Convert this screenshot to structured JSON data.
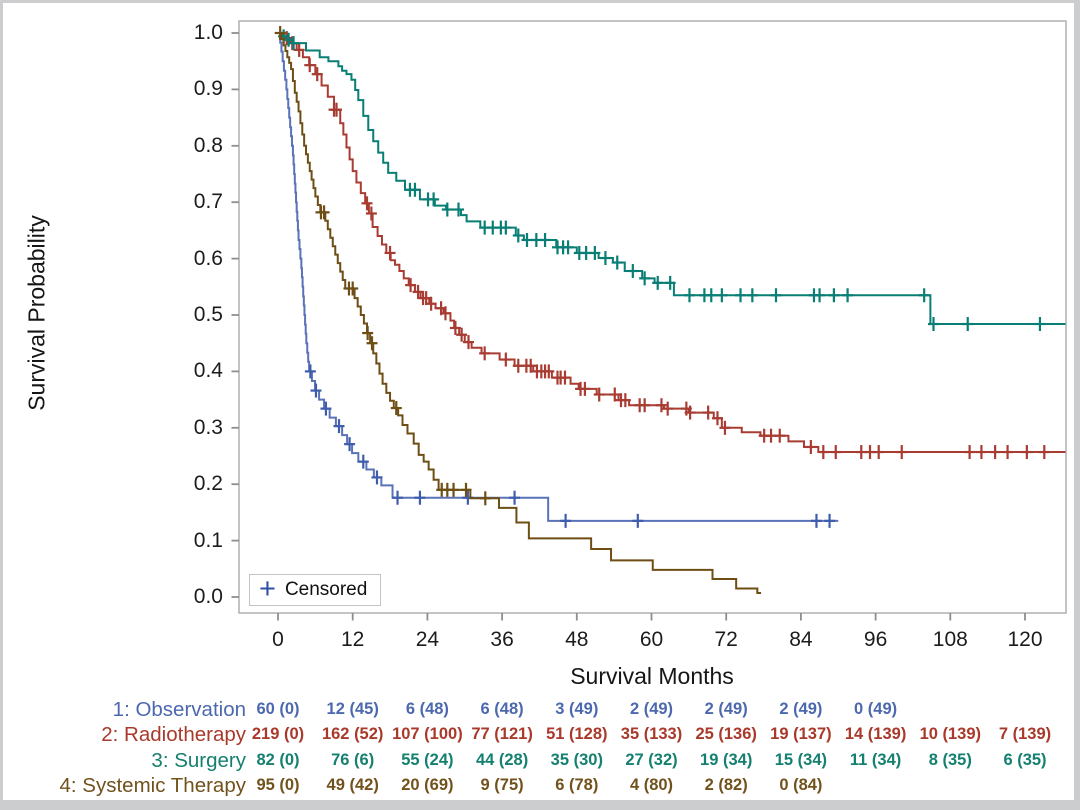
{
  "legend": {
    "marker": "+",
    "label": "Censored",
    "marker_color": "#2b50a4"
  },
  "palette": {
    "observation": "#5a73b8",
    "radiotherapy": "#a93c32",
    "surgery": "#087e74",
    "systemic": "#6e4e14",
    "axis_text": "#1c1c1c",
    "plot_border": "#a8aaac",
    "tick_mark": "#8c8e90"
  },
  "chart_data": {
    "type": "line",
    "subtype": "kaplan-meier-step",
    "title": "",
    "xlabel": "Survival Months",
    "ylabel": "Survival Probability",
    "xlim": [
      -6.3,
      126.6
    ],
    "ylim": [
      0.0,
      1.0
    ],
    "grid": false,
    "legend_position": "inside-bottom-left",
    "x_ticks": [
      0,
      12,
      24,
      36,
      48,
      60,
      72,
      84,
      96,
      108,
      120
    ],
    "y_ticks": [
      "1.0",
      "0.9",
      "0.8",
      "0.7",
      "0.6",
      "0.5",
      "0.4",
      "0.3",
      "0.2",
      "0.1",
      "0.0"
    ],
    "series": [
      {
        "name": "1: Observation",
        "color": "#5a73b8",
        "censor_color": "#3f5dad",
        "end_month": 90,
        "points": [
          [
            0,
            1
          ],
          [
            0.35,
            0.983
          ],
          [
            0.55,
            0.967
          ],
          [
            0.75,
            0.95
          ],
          [
            0.95,
            0.933
          ],
          [
            1.15,
            0.917
          ],
          [
            1.35,
            0.9
          ],
          [
            1.5,
            0.883
          ],
          [
            1.65,
            0.867
          ],
          [
            1.8,
            0.85
          ],
          [
            1.95,
            0.833
          ],
          [
            2.1,
            0.817
          ],
          [
            2.25,
            0.8
          ],
          [
            2.4,
            0.783
          ],
          [
            2.5,
            0.767
          ],
          [
            2.6,
            0.75
          ],
          [
            2.7,
            0.733
          ],
          [
            2.8,
            0.717
          ],
          [
            2.9,
            0.7
          ],
          [
            3,
            0.683
          ],
          [
            3.1,
            0.667
          ],
          [
            3.2,
            0.65
          ],
          [
            3.3,
            0.633
          ],
          [
            3.45,
            0.617
          ],
          [
            3.6,
            0.6
          ],
          [
            3.75,
            0.583
          ],
          [
            3.85,
            0.567
          ],
          [
            3.95,
            0.55
          ],
          [
            4.05,
            0.533
          ],
          [
            4.15,
            0.517
          ],
          [
            4.25,
            0.5
          ],
          [
            4.35,
            0.483
          ],
          [
            4.45,
            0.467
          ],
          [
            4.55,
            0.45
          ],
          [
            4.7,
            0.433
          ],
          [
            4.85,
            0.417
          ],
          [
            5,
            0.4
          ],
          [
            5.45,
            0.383
          ],
          [
            5.95,
            0.366
          ],
          [
            6.6,
            0.35
          ],
          [
            7.4,
            0.334
          ],
          [
            8.3,
            0.318
          ],
          [
            9.3,
            0.303
          ],
          [
            10.3,
            0.287
          ],
          [
            11.1,
            0.271
          ],
          [
            11.9,
            0.255
          ],
          [
            12.9,
            0.24
          ],
          [
            14.2,
            0.226
          ],
          [
            15.4,
            0.212
          ],
          [
            16.6,
            0.198
          ],
          [
            18.4,
            0.176
          ],
          [
            43.4,
            0.135
          ]
        ],
        "censor_months": [
          5.2,
          6.1,
          7.7,
          9.8,
          11.5,
          13.7,
          15.9,
          19.2,
          22.8,
          30.5,
          38,
          46.2,
          57.8,
          86.5,
          88.6
        ]
      },
      {
        "name": "2: Radiotherapy",
        "color": "#a93c32",
        "censor_color": "#a93c32",
        "end_month": 126.5,
        "points": [
          [
            0,
            1
          ],
          [
            1,
            0.991
          ],
          [
            2,
            0.982
          ],
          [
            3,
            0.97
          ],
          [
            4,
            0.957
          ],
          [
            5,
            0.943
          ],
          [
            6,
            0.927
          ],
          [
            7,
            0.907
          ],
          [
            8,
            0.887
          ],
          [
            9,
            0.864
          ],
          [
            10,
            0.84
          ],
          [
            10.5,
            0.82
          ],
          [
            11,
            0.797
          ],
          [
            11.5,
            0.776
          ],
          [
            12,
            0.755
          ],
          [
            12.6,
            0.735
          ],
          [
            13.3,
            0.716
          ],
          [
            14,
            0.698
          ],
          [
            14.6,
            0.68
          ],
          [
            15.2,
            0.656
          ],
          [
            16,
            0.64
          ],
          [
            16.7,
            0.625
          ],
          [
            17.4,
            0.61
          ],
          [
            18.1,
            0.597
          ],
          [
            18.8,
            0.589
          ],
          [
            19.5,
            0.578
          ],
          [
            20.2,
            0.565
          ],
          [
            21,
            0.553
          ],
          [
            22,
            0.541
          ],
          [
            22.9,
            0.53
          ],
          [
            24.3,
            0.52
          ],
          [
            25.3,
            0.512
          ],
          [
            26.6,
            0.503
          ],
          [
            27.7,
            0.49
          ],
          [
            28.3,
            0.477
          ],
          [
            29.1,
            0.465
          ],
          [
            30,
            0.452
          ],
          [
            31.1,
            0.442
          ],
          [
            32.7,
            0.432
          ],
          [
            35.6,
            0.421
          ],
          [
            38,
            0.41
          ],
          [
            41,
            0.4
          ],
          [
            44,
            0.389
          ],
          [
            47,
            0.378
          ],
          [
            48.3,
            0.369
          ],
          [
            51.2,
            0.359
          ],
          [
            54.7,
            0.349
          ],
          [
            56.4,
            0.34
          ],
          [
            62,
            0.334
          ],
          [
            66,
            0.327
          ],
          [
            70,
            0.317
          ],
          [
            71.3,
            0.3
          ],
          [
            74.5,
            0.292
          ],
          [
            77.5,
            0.286
          ],
          [
            82,
            0.276
          ],
          [
            84.5,
            0.266
          ],
          [
            86.8,
            0.257
          ]
        ],
        "censor_months": [
          1.4,
          2.3,
          3.4,
          5.1,
          6.3,
          9,
          9.4,
          14.3,
          15,
          18,
          21.3,
          22.5,
          23.3,
          23.8,
          24.6,
          26.2,
          26.9,
          28.5,
          29.5,
          30.6,
          33.2,
          36.6,
          38.6,
          39.9,
          40.6,
          41.6,
          42.3,
          42.9,
          43.5,
          44.9,
          45.4,
          46.1,
          48.6,
          49.3,
          51.6,
          54.1,
          55.1,
          55.8,
          58.1,
          58.9,
          61.6,
          62.6,
          65.6,
          66.2,
          69.1,
          70.6,
          71.8,
          78.1,
          79.2,
          80.6,
          85.6,
          87.6,
          89.6,
          93.7,
          95.1,
          96.5,
          100.2,
          111.1,
          113,
          115.2,
          117.2,
          120.3,
          123.1
        ]
      },
      {
        "name": "3: Surgery",
        "color": "#087e74",
        "censor_color": "#087e74",
        "end_month": 126.5,
        "points": [
          [
            0,
            1
          ],
          [
            0.8,
            0.994
          ],
          [
            1.6,
            0.988
          ],
          [
            2.4,
            0.982
          ],
          [
            4.5,
            0.969
          ],
          [
            6.7,
            0.957
          ],
          [
            8.1,
            0.95
          ],
          [
            9.7,
            0.941
          ],
          [
            10.3,
            0.933
          ],
          [
            11,
            0.927
          ],
          [
            11.8,
            0.917
          ],
          [
            12.4,
            0.899
          ],
          [
            12.9,
            0.881
          ],
          [
            13.7,
            0.853
          ],
          [
            14.5,
            0.828
          ],
          [
            15.3,
            0.808
          ],
          [
            16.1,
            0.788
          ],
          [
            16.9,
            0.77
          ],
          [
            17.7,
            0.752
          ],
          [
            19,
            0.738
          ],
          [
            20.4,
            0.722
          ],
          [
            22.8,
            0.705
          ],
          [
            25.2,
            0.694
          ],
          [
            27,
            0.687
          ],
          [
            29.4,
            0.677
          ],
          [
            30.3,
            0.666
          ],
          [
            32.5,
            0.655
          ],
          [
            38.2,
            0.641
          ],
          [
            39.5,
            0.633
          ],
          [
            44.7,
            0.62
          ],
          [
            48,
            0.61
          ],
          [
            51.5,
            0.601
          ],
          [
            53.8,
            0.593
          ],
          [
            55.7,
            0.578
          ],
          [
            58.5,
            0.565
          ],
          [
            60.5,
            0.557
          ],
          [
            63.6,
            0.535
          ],
          [
            104.8,
            0.484
          ]
        ],
        "censor_months": [
          0.9,
          1.7,
          2.5,
          21.2,
          22,
          24.1,
          25,
          27.2,
          29,
          33.2,
          34.5,
          35.8,
          36.6,
          38.6,
          40,
          41.5,
          42.9,
          44.9,
          45.8,
          46.6,
          48.4,
          49.5,
          50.9,
          52.6,
          54.5,
          57,
          58.9,
          61,
          63,
          66.1,
          68.5,
          69.6,
          71.3,
          74.3,
          76.2,
          80,
          86.1,
          87,
          89.3,
          91.5,
          103.8,
          105.3,
          110.8,
          122.4
        ]
      },
      {
        "name": "4: Systemic Therapy",
        "color": "#6e4e14",
        "censor_color": "#6e4e14",
        "end_month": 77.6,
        "points": [
          [
            0,
            1
          ],
          [
            0.5,
            0.989
          ],
          [
            0.9,
            0.978
          ],
          [
            1.2,
            0.968
          ],
          [
            1.5,
            0.957
          ],
          [
            1.8,
            0.947
          ],
          [
            2.1,
            0.936
          ],
          [
            2.4,
            0.915
          ],
          [
            2.7,
            0.894
          ],
          [
            3,
            0.878
          ],
          [
            3.3,
            0.861
          ],
          [
            3.6,
            0.84
          ],
          [
            3.9,
            0.82
          ],
          [
            4.2,
            0.8
          ],
          [
            4.5,
            0.785
          ],
          [
            4.8,
            0.77
          ],
          [
            5.1,
            0.755
          ],
          [
            5.4,
            0.74
          ],
          [
            5.7,
            0.725
          ],
          [
            6,
            0.71
          ],
          [
            6.4,
            0.695
          ],
          [
            6.8,
            0.682
          ],
          [
            7.6,
            0.667
          ],
          [
            8,
            0.652
          ],
          [
            8.4,
            0.637
          ],
          [
            8.8,
            0.622
          ],
          [
            9.2,
            0.607
          ],
          [
            9.6,
            0.592
          ],
          [
            10,
            0.577
          ],
          [
            10.4,
            0.562
          ],
          [
            10.8,
            0.547
          ],
          [
            12.3,
            0.53
          ],
          [
            12.8,
            0.515
          ],
          [
            13.3,
            0.5
          ],
          [
            13.8,
            0.485
          ],
          [
            14.3,
            0.468
          ],
          [
            14.8,
            0.45
          ],
          [
            15.3,
            0.432
          ],
          [
            15.8,
            0.414
          ],
          [
            16.3,
            0.396
          ],
          [
            16.8,
            0.378
          ],
          [
            17.4,
            0.362
          ],
          [
            18,
            0.348
          ],
          [
            18.6,
            0.335
          ],
          [
            19.3,
            0.322
          ],
          [
            20,
            0.305
          ],
          [
            20.8,
            0.29
          ],
          [
            21.8,
            0.272
          ],
          [
            22.6,
            0.252
          ],
          [
            23.4,
            0.24
          ],
          [
            24.2,
            0.226
          ],
          [
            25,
            0.208
          ],
          [
            25.8,
            0.19
          ],
          [
            30.9,
            0.175
          ],
          [
            35.5,
            0.158
          ],
          [
            38.3,
            0.132
          ],
          [
            40.3,
            0.104
          ],
          [
            50.3,
            0.085
          ],
          [
            53.5,
            0.065
          ],
          [
            60.2,
            0.048
          ],
          [
            69.8,
            0.032
          ],
          [
            73.6,
            0.015
          ],
          [
            77,
            0.007
          ]
        ],
        "censor_months": [
          0.35,
          6.9,
          7.4,
          11.4,
          12,
          14.4,
          15.1,
          19,
          26.3,
          27.2,
          28.2,
          30.2,
          33.3
        ]
      }
    ]
  },
  "risk_table": {
    "columns_months": [
      0,
      12,
      24,
      36,
      48,
      60,
      72,
      84,
      96,
      108,
      120
    ],
    "rows": [
      {
        "label": "1: Observation",
        "color": "#4c68ae",
        "values": [
          "60 (0)",
          "12 (45)",
          "6 (48)",
          "6 (48)",
          "3 (49)",
          "2 (49)",
          "2 (49)",
          "2 (49)",
          "0 (49)"
        ]
      },
      {
        "label": "2: Radiotherapy",
        "color": "#a9392b",
        "values": [
          "219 (0)",
          "162 (52)",
          "107 (100)",
          "77 (121)",
          "51 (128)",
          "35 (133)",
          "25 (136)",
          "19 (137)",
          "14 (139)",
          "10 (139)",
          "7 (139)"
        ]
      },
      {
        "label": "3: Surgery",
        "color": "#15806f",
        "values": [
          "82 (0)",
          "76 (6)",
          "55 (24)",
          "44 (28)",
          "35 (30)",
          "27 (32)",
          "19 (34)",
          "15 (34)",
          "11 (34)",
          "8 (35)",
          "6 (35)"
        ]
      },
      {
        "label": "4: Systemic Therapy",
        "color": "#72521c",
        "values": [
          "95 (0)",
          "49 (42)",
          "20 (69)",
          "9 (75)",
          "6 (78)",
          "4 (80)",
          "2 (82)",
          "0 (84)"
        ]
      }
    ]
  }
}
